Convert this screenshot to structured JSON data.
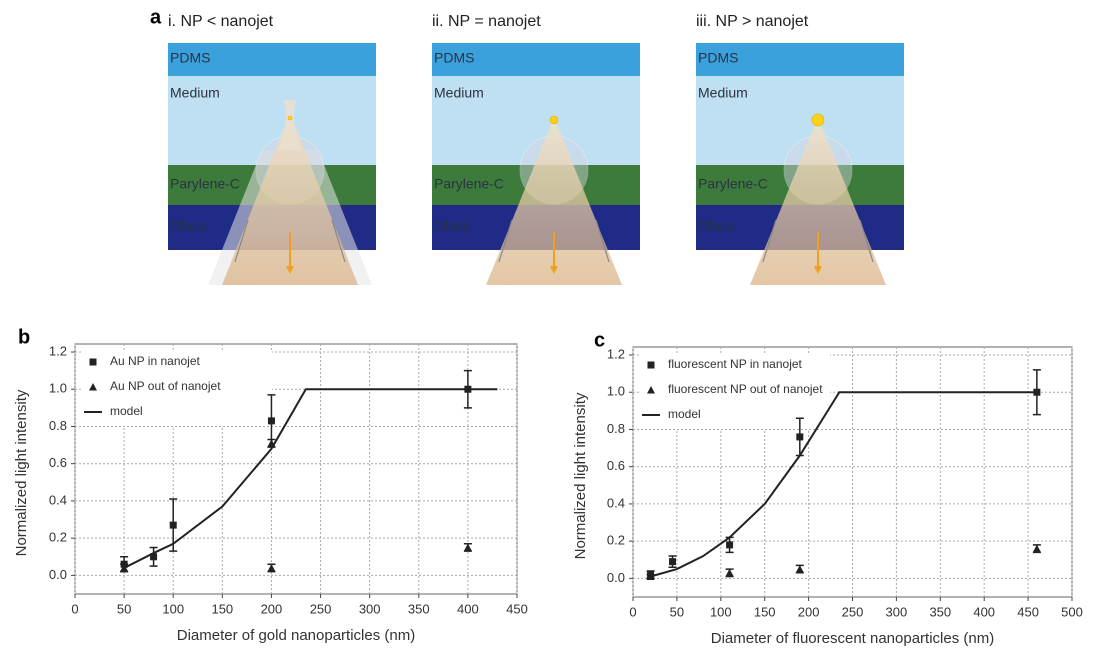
{
  "diagram": {
    "label": "a",
    "panels": [
      {
        "title": "i. NP < nanojet"
      },
      {
        "title": "ii. NP = nanojet"
      },
      {
        "title": "iii. NP > nanojet"
      }
    ],
    "layers": [
      "PDMS",
      "Medium",
      "Parylene-C",
      "Glass"
    ]
  },
  "chart_data": [
    {
      "type": "scatter",
      "label": "b",
      "x_label": "Diameter of gold nanoparticles (nm)",
      "y_label": "Normalized light intensity",
      "xlim": [
        0,
        450
      ],
      "xticks": [
        0,
        50,
        100,
        150,
        200,
        250,
        300,
        350,
        400,
        450
      ],
      "ylim": [
        -0.1,
        1.2
      ],
      "yticks": [
        {
          "value": 0,
          "label": "0.0"
        },
        0.2,
        0.4,
        0.6,
        0.8,
        {
          "value": 1,
          "label": "1.0"
        },
        1.2
      ],
      "grid": true,
      "legend": "upper-left",
      "series": [
        {
          "name": "Au NP in nanojet",
          "color": "#222222",
          "marker": "square",
          "x": [
            50,
            80,
            100,
            200,
            400
          ],
          "values": [
            0.06,
            0.1,
            0.27,
            0.83,
            1.0
          ],
          "errors": [
            0.04,
            0.05,
            0.14,
            0.14,
            0.1
          ]
        },
        {
          "name": "Au NP out of nanojet",
          "color": "#222222",
          "marker": "triangle",
          "x": [
            50,
            200,
            200,
            400
          ],
          "values": [
            0.04,
            0.71,
            0.04,
            0.15
          ],
          "errors": [
            0.02,
            0.02,
            0.02,
            0.02
          ]
        },
        {
          "name": "model",
          "color": "#222222",
          "marker": "line",
          "x": [
            50,
            80,
            100,
            150,
            200,
            235,
            430
          ],
          "values": [
            0.04,
            0.12,
            0.17,
            0.37,
            0.68,
            1.0,
            1.0
          ]
        }
      ]
    },
    {
      "type": "scatter",
      "label": "c",
      "x_label": "Diameter of fluorescent nanoparticles (nm)",
      "y_label": "Normalized light intensity",
      "xlim": [
        0,
        500
      ],
      "xticks": [
        0,
        50,
        100,
        150,
        200,
        250,
        300,
        350,
        400,
        450,
        500
      ],
      "ylim": [
        -0.1,
        1.2
      ],
      "yticks": [
        {
          "value": 0,
          "label": "0.0"
        },
        0.2,
        0.4,
        0.6,
        0.8,
        {
          "value": 1,
          "label": "1.0"
        },
        1.2
      ],
      "grid": true,
      "legend": "upper-left",
      "series": [
        {
          "name": "fluorescent NP in nanojet",
          "color": "#222222",
          "marker": "square",
          "x": [
            20,
            45,
            110,
            190,
            460
          ],
          "values": [
            0.02,
            0.09,
            0.18,
            0.76,
            1.0
          ],
          "errors": [
            0.02,
            0.03,
            0.04,
            0.1,
            0.12
          ]
        },
        {
          "name": "fluorescent NP out of nanojet",
          "color": "#222222",
          "marker": "triangle",
          "x": [
            20,
            110,
            190,
            460
          ],
          "values": [
            0.01,
            0.03,
            0.05,
            0.16
          ],
          "errors": [
            0.01,
            0.02,
            0.02,
            0.02
          ]
        },
        {
          "name": "model",
          "color": "#222222",
          "marker": "line",
          "x": [
            20,
            50,
            80,
            110,
            150,
            190,
            235,
            460
          ],
          "values": [
            0.01,
            0.05,
            0.12,
            0.22,
            0.4,
            0.66,
            1.0,
            1.0
          ]
        }
      ]
    }
  ]
}
